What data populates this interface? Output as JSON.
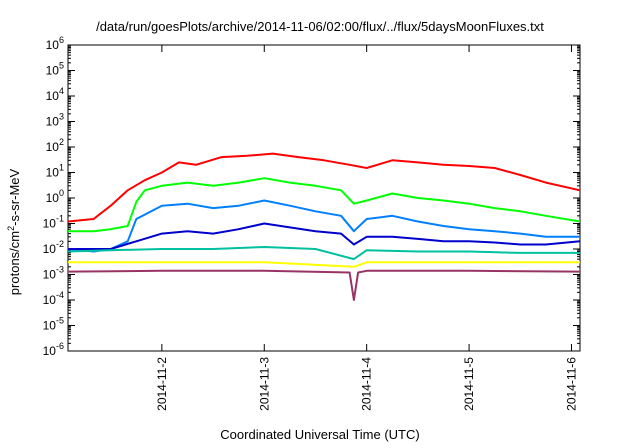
{
  "chart_data": {
    "type": "line",
    "title": "/data/run/goesPlots/archive/2014-11-06/02:00/flux/../flux/5daysMoonFluxes.txt",
    "xlabel": "Coordinated Universal Time (UTC)",
    "ylabel": {
      "base": "protons/cm",
      "sup": "2",
      "rest": "-s-sr-MeV"
    },
    "yscale": "log",
    "ylim": [
      1e-06,
      1000000.0
    ],
    "y_tick_exponents": [
      -6,
      -5,
      -4,
      -3,
      -2,
      -1,
      0,
      1,
      2,
      3,
      4,
      5,
      6
    ],
    "xlim": [
      "2014-11-01T02:00",
      "2014-11-06T02:00"
    ],
    "x_ticks": [
      "2014-11-2",
      "2014-11-3",
      "2014-11-4",
      "2014-11-5",
      "2014-11-6"
    ],
    "x_tick_dates": [
      "2014-11-02T00:00",
      "2014-11-03T00:00",
      "2014-11-04T00:00",
      "2014-11-05T00:00",
      "2014-11-06T00:00"
    ],
    "grid": false,
    "legend": "none",
    "series": [
      {
        "color": "#ff0000",
        "x": [
          "2014-11-01T02:00",
          "2014-11-01T08:00",
          "2014-11-01T12:00",
          "2014-11-01T16:00",
          "2014-11-01T20:00",
          "2014-11-02T00:00",
          "2014-11-02T04:00",
          "2014-11-02T08:00",
          "2014-11-02T14:00",
          "2014-11-02T20:00",
          "2014-11-03T02:00",
          "2014-11-03T08:00",
          "2014-11-03T14:00",
          "2014-11-03T20:00",
          "2014-11-04T00:00",
          "2014-11-04T06:00",
          "2014-11-04T12:00",
          "2014-11-04T18:00",
          "2014-11-05T00:00",
          "2014-11-05T06:00",
          "2014-11-05T12:00",
          "2014-11-05T18:00",
          "2014-11-06T02:00"
        ],
        "values": [
          0.12,
          0.15,
          0.5,
          2,
          5,
          10,
          25,
          20,
          40,
          45,
          55,
          40,
          30,
          20,
          15,
          30,
          25,
          20,
          18,
          15,
          8,
          4,
          2
        ]
      },
      {
        "color": "#00ff00",
        "x": [
          "2014-11-01T02:00",
          "2014-11-01T08:00",
          "2014-11-01T12:00",
          "2014-11-01T16:00",
          "2014-11-01T18:00",
          "2014-11-01T20:00",
          "2014-11-02T00:00",
          "2014-11-02T06:00",
          "2014-11-02T12:00",
          "2014-11-02T18:00",
          "2014-11-03T00:00",
          "2014-11-03T06:00",
          "2014-11-03T12:00",
          "2014-11-03T18:00",
          "2014-11-03T21:00",
          "2014-11-04T00:00",
          "2014-11-04T06:00",
          "2014-11-04T12:00",
          "2014-11-04T18:00",
          "2014-11-05T00:00",
          "2014-11-05T06:00",
          "2014-11-05T12:00",
          "2014-11-05T18:00",
          "2014-11-06T02:00"
        ],
        "values": [
          0.05,
          0.05,
          0.06,
          0.08,
          0.7,
          2,
          3,
          4,
          3,
          4,
          6,
          4,
          3,
          2,
          0.6,
          0.8,
          1.5,
          1,
          0.8,
          0.6,
          0.4,
          0.3,
          0.2,
          0.12
        ]
      },
      {
        "color": "#0080ff",
        "x": [
          "2014-11-01T02:00",
          "2014-11-01T08:00",
          "2014-11-01T12:00",
          "2014-11-01T16:00",
          "2014-11-01T18:00",
          "2014-11-02T00:00",
          "2014-11-02T06:00",
          "2014-11-02T12:00",
          "2014-11-02T18:00",
          "2014-11-03T00:00",
          "2014-11-03T06:00",
          "2014-11-03T12:00",
          "2014-11-03T18:00",
          "2014-11-03T21:00",
          "2014-11-04T00:00",
          "2014-11-04T06:00",
          "2014-11-04T12:00",
          "2014-11-04T18:00",
          "2014-11-05T00:00",
          "2014-11-05T06:00",
          "2014-11-05T12:00",
          "2014-11-05T18:00",
          "2014-11-06T02:00"
        ],
        "values": [
          0.01,
          0.008,
          0.01,
          0.02,
          0.15,
          0.5,
          0.6,
          0.4,
          0.5,
          0.8,
          0.5,
          0.3,
          0.2,
          0.05,
          0.15,
          0.2,
          0.12,
          0.08,
          0.06,
          0.05,
          0.04,
          0.03,
          0.03
        ]
      },
      {
        "color": "#0000cc",
        "x": [
          "2014-11-01T02:00",
          "2014-11-01T12:00",
          "2014-11-01T18:00",
          "2014-11-02T00:00",
          "2014-11-02T06:00",
          "2014-11-02T12:00",
          "2014-11-02T18:00",
          "2014-11-03T00:00",
          "2014-11-03T06:00",
          "2014-11-03T12:00",
          "2014-11-03T18:00",
          "2014-11-03T21:00",
          "2014-11-04T00:00",
          "2014-11-04T06:00",
          "2014-11-04T12:00",
          "2014-11-04T18:00",
          "2014-11-05T00:00",
          "2014-11-05T06:00",
          "2014-11-05T12:00",
          "2014-11-05T18:00",
          "2014-11-06T02:00"
        ],
        "values": [
          0.01,
          0.01,
          0.02,
          0.04,
          0.05,
          0.04,
          0.06,
          0.1,
          0.07,
          0.05,
          0.04,
          0.015,
          0.03,
          0.03,
          0.025,
          0.02,
          0.02,
          0.018,
          0.015,
          0.015,
          0.02
        ]
      },
      {
        "color": "#00c0a0",
        "x": [
          "2014-11-01T02:00",
          "2014-11-01T12:00",
          "2014-11-02T00:00",
          "2014-11-02T12:00",
          "2014-11-03T00:00",
          "2014-11-03T12:00",
          "2014-11-03T21:00",
          "2014-11-04T00:00",
          "2014-11-04T12:00",
          "2014-11-05T00:00",
          "2014-11-05T12:00",
          "2014-11-06T02:00"
        ],
        "values": [
          0.008,
          0.009,
          0.01,
          0.01,
          0.012,
          0.01,
          0.004,
          0.009,
          0.008,
          0.008,
          0.007,
          0.007
        ]
      },
      {
        "color": "#ffff00",
        "x": [
          "2014-11-01T02:00",
          "2014-11-02T00:00",
          "2014-11-03T00:00",
          "2014-11-03T21:00",
          "2014-11-04T00:00",
          "2014-11-05T00:00",
          "2014-11-06T02:00"
        ],
        "values": [
          0.003,
          0.003,
          0.003,
          0.002,
          0.003,
          0.003,
          0.003
        ]
      },
      {
        "color": "#993366",
        "x": [
          "2014-11-01T02:00",
          "2014-11-02T00:00",
          "2014-11-03T00:00",
          "2014-11-03T20:00",
          "2014-11-03T21:00",
          "2014-11-03T22:00",
          "2014-11-04T00:00",
          "2014-11-05T00:00",
          "2014-11-06T02:00"
        ],
        "values": [
          0.0013,
          0.0014,
          0.0014,
          0.0012,
          0.0001,
          0.0012,
          0.0014,
          0.0014,
          0.0013
        ]
      }
    ]
  }
}
